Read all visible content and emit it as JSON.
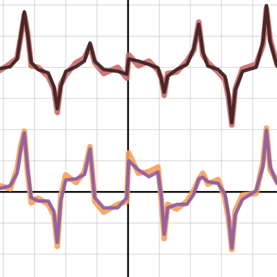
{
  "chart_data": {
    "type": "line",
    "x": [
      -4.11,
      -3.78,
      -3.56,
      -3.44,
      -3.33,
      -3.22,
      -3.11,
      -2.89,
      -2.56,
      -2.38,
      -2.27,
      -2.16,
      -2,
      -1.67,
      -1.4,
      -1.22,
      -1.07,
      -0.78,
      -0.33,
      -0.04,
      0.02,
      0.33,
      0.67,
      0.96,
      1.07,
      1.16,
      1.27,
      1.56,
      1.89,
      2.11,
      2.27,
      2.4,
      2.56,
      2.89,
      3.11,
      3.22,
      3.33,
      3.44,
      3.67,
      4.11,
      4.33,
      4.44,
      4.56,
      4.78
    ],
    "series": [
      {
        "color": "#c96a6a",
        "width": 8,
        "values": [
          3.9,
          4.12,
          4.3,
          5.0,
          5.7,
          5.1,
          4.05,
          4.0,
          3.7,
          3.3,
          2.55,
          3.45,
          3.75,
          4.15,
          4.3,
          4.7,
          4.15,
          3.8,
          4.0,
          3.65,
          4.4,
          4.05,
          4.2,
          3.9,
          3.65,
          3.1,
          3.8,
          3.85,
          4.2,
          4.55,
          5.45,
          4.4,
          4.15,
          3.85,
          3.6,
          3.05,
          2.15,
          3.3,
          3.95,
          4.1,
          4.7,
          5.9,
          4.9,
          4.1
        ]
      },
      {
        "color": "#3a1f1f",
        "width": 5,
        "values": [
          3.96,
          4.02,
          4.27,
          5.04,
          5.78,
          5.04,
          4.16,
          3.93,
          3.82,
          3.38,
          2.67,
          3.38,
          3.87,
          4.02,
          4.2,
          4.78,
          4.2,
          3.93,
          3.87,
          3.78,
          4.27,
          4.2,
          4.09,
          3.98,
          3.6,
          3.2,
          3.71,
          3.93,
          4.09,
          4.6,
          5.38,
          4.49,
          4.04,
          3.93,
          3.71,
          3.16,
          2.22,
          3.27,
          3.87,
          4.0,
          4.82,
          5.98,
          4.82,
          4.04
        ]
      },
      {
        "color": "#f5a05a",
        "width": 8,
        "values": [
          0.2,
          0.1,
          0.75,
          1.5,
          1.95,
          0.6,
          -0.35,
          -0.2,
          -0.4,
          -0.75,
          -1.75,
          -0.15,
          0.55,
          0.3,
          0.65,
          1.45,
          -0.3,
          -0.65,
          -0.4,
          -0.3,
          1.25,
          0.6,
          0.65,
          0.8,
          -0.3,
          -1.5,
          -0.4,
          -0.55,
          -0.3,
          0.05,
          0.4,
          0.6,
          0.25,
          0.4,
          -0.2,
          -0.85,
          -1.85,
          -0.6,
          -0.1,
          -0.05,
          0.95,
          2.05,
          0.7,
          0.35
        ]
      },
      {
        "color": "#8a5ca6",
        "width": 5,
        "values": [
          0.11,
          0.2,
          0.6,
          1.38,
          1.89,
          0.71,
          -0.18,
          -0.29,
          -0.29,
          -0.62,
          -1.62,
          -0.29,
          0.38,
          0.42,
          0.56,
          1.38,
          -0.18,
          -0.51,
          -0.51,
          -0.18,
          1.0,
          0.71,
          0.49,
          0.64,
          -0.18,
          -1.36,
          -0.51,
          -0.4,
          -0.4,
          -0.07,
          0.42,
          0.47,
          0.33,
          0.27,
          -0.07,
          -0.73,
          -1.8,
          -0.73,
          -0.24,
          0.04,
          0.82,
          1.98,
          0.82,
          0.27
        ]
      }
    ],
    "xlim": [
      -4.11,
      4.78
    ],
    "ylim": [
      -2.73,
      6.16
    ],
    "xticks": [
      -4,
      -3,
      -2,
      -1,
      0,
      1,
      2,
      3,
      4
    ],
    "yticks": [
      -2,
      -1,
      0,
      1,
      2,
      3,
      4,
      5,
      6
    ],
    "grid": true
  }
}
